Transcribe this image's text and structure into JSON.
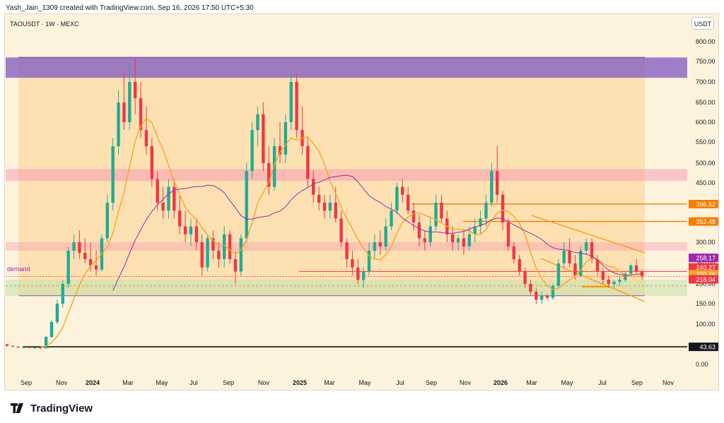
{
  "header": {
    "attribution": "Yash_Jain_1309 created with TradingView.com, Sep 16, 2026 17:50 UTC+5:30"
  },
  "symbol": {
    "label": "TAOUSDT · 1W · MEXC"
  },
  "currency": "USDT",
  "logo": {
    "text": "TradingView"
  },
  "colors": {
    "up": "#22ab94",
    "down": "#f23645",
    "ma_fast": "#f5a623",
    "ma_slow": "#9c27b0",
    "channel": "#ff9800",
    "level_line": "#f57c00",
    "zone_top": "#7e57c2",
    "zone_pink": "#f48fb1",
    "zone_demand": "#c5e1a5",
    "bg_box": "#ffcc80"
  },
  "chart_data": {
    "type": "candlestick",
    "y_scale": "log",
    "ylim": [
      0,
      800
    ],
    "y_ticks": [
      "800.00",
      "750.00",
      "700.00",
      "650.00",
      "600.00",
      "550.00",
      "500.00",
      "450.00",
      "300.00",
      "250.00",
      "200.00",
      "150.00",
      "100.00",
      "0.00"
    ],
    "x_ticks": [
      "Sep",
      "Nov",
      "2024",
      "Mar",
      "May",
      "Jul",
      "Sep",
      "Nov",
      "2025",
      "Mar",
      "May",
      "Jul",
      "Sep",
      "Nov",
      "2026",
      "Mar",
      "May",
      "Jul",
      "Sep",
      "Nov"
    ],
    "price_labels": [
      {
        "value": 396.52,
        "text": "396.52",
        "color": "#f57c00"
      },
      {
        "value": 352.48,
        "text": "352.48",
        "color": "#f57c00"
      },
      {
        "value": 258.17,
        "text": "258.17",
        "color": "#9c27b0"
      },
      {
        "value": 240.27,
        "text": "240.27",
        "color": "#f23645"
      },
      {
        "value": 230.46,
        "text": "230.46",
        "color": "#f5a623"
      },
      {
        "value": 218.04,
        "text": "218.04",
        "color": "#f23645"
      },
      {
        "value": 43.63,
        "text": "43.63",
        "color": "#131722"
      }
    ],
    "annotations": [
      {
        "text": "demand",
        "value": 230
      }
    ],
    "zones": [
      {
        "name": "supply-top",
        "low": 710,
        "high": 760
      },
      {
        "name": "mid-resistance",
        "low": 455,
        "high": 485
      },
      {
        "name": "lower-resistance",
        "low": 280,
        "high": 300
      },
      {
        "name": "demand",
        "low": 170,
        "high": 210
      }
    ],
    "horizontal_lines": [
      396.52,
      352.48,
      230.46,
      43.63
    ],
    "candles": [
      [
        50,
        51,
        44,
        46
      ],
      [
        46,
        47,
        43,
        44
      ],
      [
        44,
        45,
        40,
        42
      ],
      [
        42,
        44,
        39,
        43
      ],
      [
        43,
        45,
        40,
        41
      ],
      [
        41,
        44,
        38,
        42
      ],
      [
        42,
        43,
        38,
        40
      ],
      [
        40,
        70,
        39,
        68
      ],
      [
        68,
        110,
        66,
        105
      ],
      [
        105,
        160,
        100,
        150
      ],
      [
        150,
        210,
        140,
        200
      ],
      [
        200,
        290,
        190,
        280
      ],
      [
        280,
        320,
        260,
        300
      ],
      [
        300,
        330,
        260,
        275
      ],
      [
        275,
        310,
        250,
        260
      ],
      [
        260,
        300,
        230,
        245
      ],
      [
        245,
        280,
        220,
        235
      ],
      [
        235,
        320,
        230,
        310
      ],
      [
        310,
        420,
        300,
        400
      ],
      [
        400,
        560,
        380,
        540
      ],
      [
        540,
        680,
        520,
        650
      ],
      [
        650,
        720,
        580,
        600
      ],
      [
        600,
        740,
        580,
        700
      ],
      [
        700,
        760,
        620,
        660
      ],
      [
        660,
        700,
        560,
        580
      ],
      [
        580,
        640,
        520,
        540
      ],
      [
        540,
        560,
        440,
        460
      ],
      [
        460,
        480,
        380,
        400
      ],
      [
        400,
        440,
        360,
        380
      ],
      [
        380,
        460,
        360,
        440
      ],
      [
        440,
        460,
        360,
        380
      ],
      [
        380,
        420,
        320,
        340
      ],
      [
        340,
        380,
        300,
        320
      ],
      [
        320,
        360,
        290,
        340
      ],
      [
        340,
        360,
        280,
        300
      ],
      [
        300,
        320,
        220,
        240
      ],
      [
        240,
        320,
        230,
        310
      ],
      [
        310,
        330,
        260,
        280
      ],
      [
        280,
        300,
        240,
        260
      ],
      [
        260,
        340,
        240,
        320
      ],
      [
        320,
        330,
        250,
        260
      ],
      [
        260,
        280,
        200,
        230
      ],
      [
        230,
        320,
        220,
        310
      ],
      [
        310,
        500,
        300,
        480
      ],
      [
        480,
        600,
        460,
        580
      ],
      [
        580,
        640,
        540,
        620
      ],
      [
        620,
        650,
        480,
        500
      ],
      [
        500,
        540,
        420,
        440
      ],
      [
        440,
        560,
        430,
        540
      ],
      [
        540,
        600,
        500,
        520
      ],
      [
        520,
        620,
        500,
        600
      ],
      [
        600,
        720,
        580,
        700
      ],
      [
        700,
        720,
        560,
        580
      ],
      [
        580,
        640,
        520,
        540
      ],
      [
        540,
        560,
        440,
        460
      ],
      [
        460,
        480,
        400,
        420
      ],
      [
        420,
        440,
        380,
        400
      ],
      [
        400,
        420,
        360,
        380
      ],
      [
        380,
        420,
        360,
        400
      ],
      [
        400,
        440,
        350,
        360
      ],
      [
        360,
        380,
        290,
        300
      ],
      [
        300,
        310,
        240,
        260
      ],
      [
        260,
        280,
        220,
        240
      ],
      [
        240,
        260,
        200,
        210
      ],
      [
        210,
        240,
        190,
        230
      ],
      [
        230,
        300,
        220,
        280
      ],
      [
        280,
        320,
        260,
        300
      ],
      [
        300,
        330,
        270,
        290
      ],
      [
        290,
        360,
        280,
        340
      ],
      [
        340,
        400,
        330,
        380
      ],
      [
        380,
        450,
        370,
        440
      ],
      [
        440,
        460,
        400,
        420
      ],
      [
        420,
        440,
        370,
        380
      ],
      [
        380,
        400,
        330,
        350
      ],
      [
        350,
        370,
        290,
        310
      ],
      [
        310,
        330,
        280,
        300
      ],
      [
        300,
        360,
        290,
        340
      ],
      [
        340,
        420,
        330,
        400
      ],
      [
        400,
        420,
        350,
        360
      ],
      [
        360,
        380,
        300,
        320
      ],
      [
        320,
        340,
        280,
        300
      ],
      [
        300,
        320,
        280,
        310
      ],
      [
        310,
        330,
        270,
        290
      ],
      [
        290,
        340,
        280,
        320
      ],
      [
        320,
        360,
        300,
        340
      ],
      [
        340,
        380,
        320,
        360
      ],
      [
        360,
        420,
        340,
        400
      ],
      [
        400,
        500,
        390,
        480
      ],
      [
        480,
        540,
        400,
        420
      ],
      [
        420,
        430,
        330,
        350
      ],
      [
        350,
        360,
        280,
        290
      ],
      [
        290,
        300,
        250,
        260
      ],
      [
        260,
        270,
        220,
        230
      ],
      [
        230,
        240,
        190,
        200
      ],
      [
        200,
        210,
        170,
        180
      ],
      [
        180,
        190,
        150,
        160
      ],
      [
        160,
        180,
        150,
        170
      ],
      [
        170,
        175,
        160,
        165
      ],
      [
        165,
        200,
        160,
        195
      ],
      [
        195,
        260,
        190,
        250
      ],
      [
        250,
        300,
        240,
        280
      ],
      [
        280,
        310,
        240,
        250
      ],
      [
        250,
        270,
        210,
        220
      ],
      [
        220,
        290,
        215,
        280
      ],
      [
        280,
        310,
        270,
        300
      ],
      [
        300,
        310,
        250,
        260
      ],
      [
        260,
        270,
        220,
        230
      ],
      [
        230,
        240,
        200,
        210
      ],
      [
        210,
        220,
        190,
        200
      ],
      [
        200,
        210,
        190,
        205
      ],
      [
        205,
        220,
        195,
        210
      ],
      [
        210,
        230,
        205,
        225
      ],
      [
        225,
        250,
        220,
        245
      ],
      [
        245,
        260,
        225,
        230
      ],
      [
        230,
        235,
        210,
        218
      ]
    ]
  }
}
